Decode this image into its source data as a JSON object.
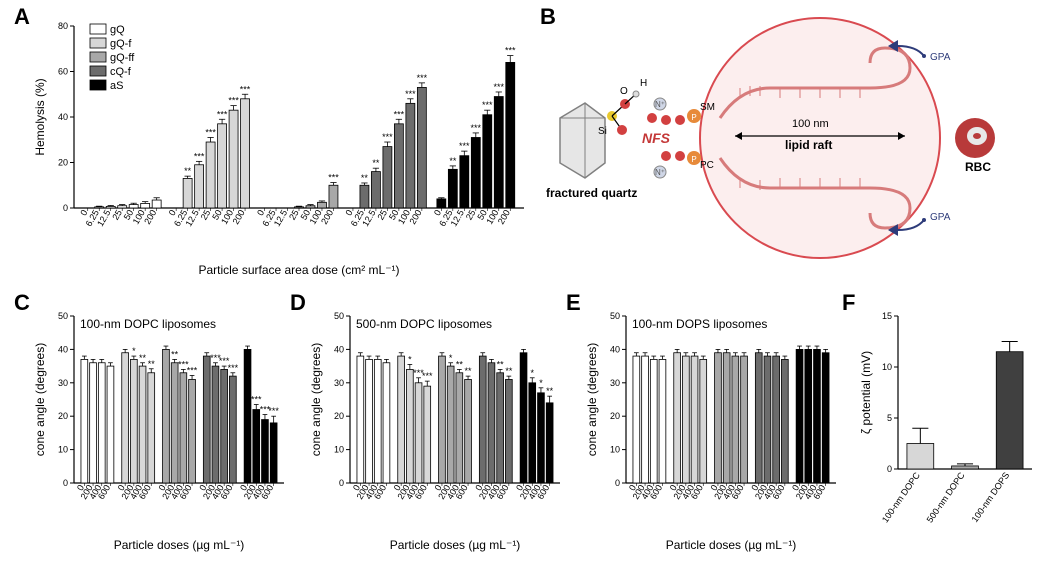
{
  "panels": {
    "A": {
      "label": "A"
    },
    "B": {
      "label": "B"
    },
    "C": {
      "label": "C"
    },
    "D": {
      "label": "D"
    },
    "E": {
      "label": "E"
    },
    "F": {
      "label": "F"
    }
  },
  "legend": {
    "items": [
      {
        "label": "gQ",
        "color": "#ffffff",
        "stroke": "#000000"
      },
      {
        "label": "gQ-f",
        "color": "#d7d7d7",
        "stroke": "#000000"
      },
      {
        "label": "gQ-ff",
        "color": "#a8a8a8",
        "stroke": "#000000"
      },
      {
        "label": "cQ-f",
        "color": "#6c6c6c",
        "stroke": "#000000"
      },
      {
        "label": "aS",
        "color": "#000000",
        "stroke": "#000000"
      }
    ],
    "fontsize": 12
  },
  "panelA": {
    "title": "",
    "ylabel": "Hemolysis (%)",
    "xlabel": "Particle surface area dose (cm² mL⁻¹)",
    "categories": [
      "0",
      "6.25",
      "12.5",
      "25",
      "50",
      "100",
      "200"
    ],
    "ylim": [
      0,
      80
    ],
    "ytick_step": 20,
    "label_fontsize": 12,
    "tick_fontsize": 9,
    "bar_width": 0.78,
    "group_gap": 8,
    "series": [
      {
        "key": "gQ",
        "color": "#ffffff",
        "values": [
          0,
          0.5,
          0.7,
          1,
          1.5,
          2,
          3.5
        ],
        "err": [
          0,
          0.3,
          0.4,
          0.5,
          0.6,
          0.8,
          1
        ],
        "sig": [
          "",
          "",
          "",
          "",
          "",
          "",
          ""
        ]
      },
      {
        "key": "gQ-f",
        "color": "#d7d7d7",
        "values": [
          0,
          13,
          19,
          29,
          37,
          43,
          48
        ],
        "err": [
          0,
          1,
          1.5,
          2,
          2,
          2,
          2
        ],
        "sig": [
          "",
          "**",
          "***",
          "***",
          "***",
          "***",
          "***"
        ]
      },
      {
        "key": "gQ-ff",
        "color": "#a8a8a8",
        "values": [
          0,
          0,
          0,
          0.5,
          1,
          2.5,
          10
        ],
        "err": [
          0,
          0,
          0,
          0.3,
          0.5,
          0.6,
          1.2
        ],
        "sig": [
          "",
          "",
          "",
          "",
          "",
          "",
          "***"
        ]
      },
      {
        "key": "cQ-f",
        "color": "#6c6c6c",
        "values": [
          0,
          10,
          16,
          27,
          37,
          46,
          53
        ],
        "err": [
          0,
          1,
          1.5,
          2,
          2,
          2,
          2
        ],
        "sig": [
          "",
          "**",
          "**",
          "***",
          "***",
          "***",
          "***"
        ]
      },
      {
        "key": "aS",
        "color": "#000000",
        "values": [
          4,
          17,
          23,
          31,
          41,
          49,
          64
        ],
        "err": [
          0.5,
          1.5,
          2,
          2,
          2,
          2,
          3
        ],
        "sig": [
          "",
          "**",
          "***",
          "***",
          "***",
          "***",
          "***"
        ]
      }
    ]
  },
  "panelB": {
    "texts": {
      "fractured_quartz": "fractured quartz",
      "nfs": "NFS",
      "lipid_raft": "lipid raft",
      "dim": "100 nm",
      "rbc": "RBC",
      "gpa": "GPA",
      "sm": "SM",
      "pc": "PC",
      "si": "Si",
      "o": "O",
      "h": "H"
    },
    "colors": {
      "raft_stroke": "#d94a50",
      "raft_fill": "rgba(240,180,180,0.25)",
      "nfs_color": "#c43838",
      "si_bond": "#e9c92e",
      "o_red": "#d24040",
      "glyco_blue": "#2e3c7a",
      "rbc_red": "#b83a3a",
      "quartz_fill": "#e6e6e6",
      "quartz_stroke": "#808080"
    }
  },
  "coneCommon": {
    "ylabel": "cone angle (degrees)",
    "xlabel": "Particle doses (µg mL⁻¹)",
    "categories": [
      "0",
      "200",
      "400",
      "600"
    ],
    "ylim": [
      0,
      50
    ],
    "ytick_step": 10,
    "label_fontsize": 12,
    "tick_fontsize": 9,
    "bar_width": 0.78,
    "group_gap": 6
  },
  "panelC": {
    "title": "100-nm DOPC liposomes",
    "series": [
      {
        "key": "gQ",
        "color": "#ffffff",
        "values": [
          37,
          36,
          36,
          35
        ],
        "err": [
          1,
          1,
          1,
          1
        ],
        "sig": [
          "",
          "",
          "",
          ""
        ]
      },
      {
        "key": "gQ-f",
        "color": "#d7d7d7",
        "values": [
          39,
          37,
          35,
          33
        ],
        "err": [
          1,
          1,
          1,
          1.2
        ],
        "sig": [
          "",
          "*",
          "**",
          "**"
        ]
      },
      {
        "key": "gQ-ff",
        "color": "#a8a8a8",
        "values": [
          40,
          36,
          33,
          31
        ],
        "err": [
          1,
          1,
          1,
          1.2
        ],
        "sig": [
          "",
          "**",
          "***",
          "***"
        ]
      },
      {
        "key": "cQ-f",
        "color": "#6c6c6c",
        "values": [
          38,
          35,
          34,
          32
        ],
        "err": [
          1,
          1,
          1,
          1
        ],
        "sig": [
          "",
          "***",
          "***",
          "***"
        ]
      },
      {
        "key": "aS",
        "color": "#000000",
        "values": [
          40,
          22,
          19,
          18
        ],
        "err": [
          1,
          1.5,
          1.5,
          2
        ],
        "sig": [
          "",
          "***",
          "***",
          "***"
        ]
      }
    ]
  },
  "panelD": {
    "title": "500-nm DOPC liposomes",
    "series": [
      {
        "key": "gQ",
        "color": "#ffffff",
        "values": [
          38,
          37,
          37,
          36
        ],
        "err": [
          1,
          1,
          1,
          1
        ],
        "sig": [
          "",
          "",
          "",
          ""
        ]
      },
      {
        "key": "gQ-f",
        "color": "#d7d7d7",
        "values": [
          38,
          34,
          30,
          29
        ],
        "err": [
          1,
          1.5,
          1.5,
          1.5
        ],
        "sig": [
          "",
          "*",
          "***",
          "***"
        ]
      },
      {
        "key": "gQ-ff",
        "color": "#a8a8a8",
        "values": [
          38,
          35,
          33,
          31
        ],
        "err": [
          1,
          1,
          1,
          1
        ],
        "sig": [
          "",
          "*",
          "**",
          "**"
        ]
      },
      {
        "key": "cQ-f",
        "color": "#6c6c6c",
        "values": [
          38,
          36,
          33,
          31
        ],
        "err": [
          1,
          1,
          1,
          1
        ],
        "sig": [
          "",
          "",
          "**",
          "**"
        ]
      },
      {
        "key": "aS",
        "color": "#000000",
        "values": [
          39,
          30,
          27,
          24
        ],
        "err": [
          1,
          1.5,
          1.5,
          2
        ],
        "sig": [
          "",
          "*",
          "*",
          "**"
        ]
      }
    ]
  },
  "panelE": {
    "title": "100-nm DOPS liposomes",
    "series": [
      {
        "key": "gQ",
        "color": "#ffffff",
        "values": [
          38,
          38,
          37,
          37
        ],
        "err": [
          1,
          1,
          1,
          1
        ],
        "sig": [
          "",
          "",
          "",
          ""
        ]
      },
      {
        "key": "gQ-f",
        "color": "#d7d7d7",
        "values": [
          39,
          38,
          38,
          37
        ],
        "err": [
          1,
          1,
          1,
          1
        ],
        "sig": [
          "",
          "",
          "",
          ""
        ]
      },
      {
        "key": "gQ-ff",
        "color": "#a8a8a8",
        "values": [
          39,
          39,
          38,
          38
        ],
        "err": [
          1,
          1,
          1,
          1
        ],
        "sig": [
          "",
          "",
          "",
          ""
        ]
      },
      {
        "key": "cQ-f",
        "color": "#6c6c6c",
        "values": [
          39,
          38,
          38,
          37
        ],
        "err": [
          1,
          1,
          1,
          1
        ],
        "sig": [
          "",
          "",
          "",
          ""
        ]
      },
      {
        "key": "aS",
        "color": "#000000",
        "values": [
          40,
          40,
          40,
          39
        ],
        "err": [
          1,
          1,
          1,
          1
        ],
        "sig": [
          "",
          "",
          "",
          ""
        ]
      }
    ]
  },
  "panelF": {
    "ylabel": "ζ potential (mV)",
    "categories": [
      "100-nm DOPC",
      "500-nm DOPC",
      "100-nm DOPS"
    ],
    "values": [
      2.5,
      0.3,
      11.5
    ],
    "err": [
      1.5,
      0.2,
      1
    ],
    "colors": [
      "#d7d7d7",
      "#a8a8a8",
      "#404040"
    ],
    "ylim": [
      0,
      15
    ],
    "ytick_step": 5,
    "label_fontsize": 12,
    "tick_fontsize": 9,
    "bar_width": 0.6
  },
  "style": {
    "axis_color": "#000000",
    "grid_color": "#ffffff",
    "background": "#ffffff",
    "err_color": "#000000",
    "sig_fontsize": 9
  }
}
